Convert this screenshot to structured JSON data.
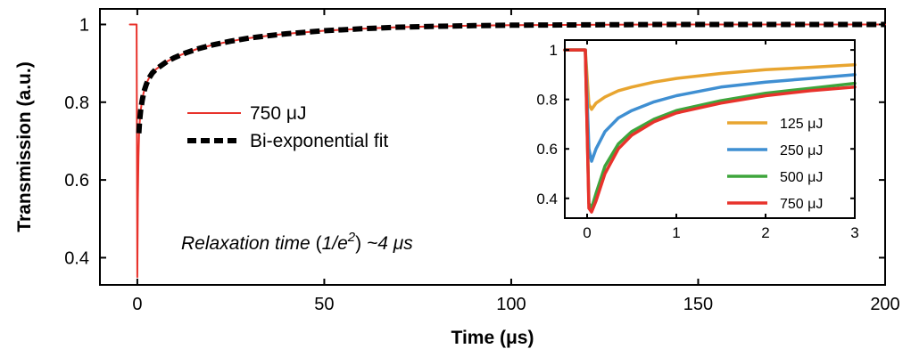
{
  "chart_data": [
    {
      "type": "line",
      "xlabel": "Time (μs)",
      "ylabel": "Transmission (a.u.)",
      "xlim": [
        -10,
        200
      ],
      "ylim": [
        0.33,
        1.04
      ],
      "xticks": [
        0,
        50,
        100,
        150,
        200
      ],
      "yticks": [
        0.4,
        0.6,
        0.8,
        1
      ],
      "legend": "middle-left",
      "grid": false,
      "annotation": {
        "prefix": "Relaxation time ",
        "open_paren": "(",
        "base": "1/e",
        "superscript": "2",
        "close_paren": ")",
        "suffix": " ~4 μs"
      },
      "series": [
        {
          "name": "750 μJ",
          "color": "#e8322b",
          "style": "solid",
          "x": [
            -2,
            -0.2,
            0,
            0.05,
            0.15,
            0.3,
            0.5,
            0.8,
            1.2,
            1.7,
            2.3,
            3,
            4,
            5,
            6.5,
            8,
            10,
            13,
            16,
            20,
            25,
            30,
            35,
            40,
            50,
            60,
            70,
            80,
            90,
            100,
            120,
            140,
            160,
            180,
            200
          ],
          "y": [
            1.0,
            1.0,
            0.35,
            0.42,
            0.55,
            0.66,
            0.73,
            0.77,
            0.8,
            0.825,
            0.845,
            0.86,
            0.875,
            0.885,
            0.895,
            0.905,
            0.915,
            0.927,
            0.937,
            0.947,
            0.957,
            0.965,
            0.971,
            0.976,
            0.984,
            0.989,
            0.993,
            0.995,
            0.997,
            0.998,
            0.999,
            1.0,
            1.0,
            1.0,
            1.0
          ]
        },
        {
          "name": "Bi-exponential fit",
          "color": "#000000",
          "style": "dashed",
          "x": [
            0.4,
            0.6,
            0.9,
            1.3,
            1.8,
            2.4,
            3,
            4,
            5,
            6.5,
            8,
            10,
            13,
            16,
            20,
            25,
            30,
            35,
            40,
            50,
            60,
            70,
            80,
            90,
            100,
            120,
            140,
            160,
            180,
            200
          ],
          "y": [
            0.72,
            0.75,
            0.78,
            0.805,
            0.828,
            0.846,
            0.86,
            0.875,
            0.885,
            0.895,
            0.905,
            0.915,
            0.927,
            0.937,
            0.947,
            0.957,
            0.965,
            0.971,
            0.976,
            0.984,
            0.989,
            0.993,
            0.995,
            0.997,
            0.998,
            0.999,
            1.0,
            1.0,
            1.0,
            1.0
          ]
        }
      ]
    },
    {
      "type": "line",
      "xlabel": "",
      "ylabel": "",
      "xlim": [
        -0.25,
        3
      ],
      "ylim": [
        0.32,
        1.04
      ],
      "xticks": [
        0,
        1,
        2,
        3
      ],
      "yticks": [
        0.4,
        0.6,
        0.8,
        1
      ],
      "legend": "bottom-right",
      "grid": false,
      "series": [
        {
          "name": "125 μJ",
          "color": "#e8a530",
          "x": [
            -0.25,
            -0.02,
            0.02,
            0.05,
            0.1,
            0.2,
            0.35,
            0.5,
            0.75,
            1.0,
            1.5,
            2.0,
            2.5,
            3.0
          ],
          "y": [
            1.0,
            1.0,
            0.78,
            0.76,
            0.785,
            0.81,
            0.835,
            0.85,
            0.87,
            0.885,
            0.905,
            0.92,
            0.93,
            0.94
          ]
        },
        {
          "name": "250 μJ",
          "color": "#3f8fd2",
          "x": [
            -0.25,
            -0.02,
            0.02,
            0.05,
            0.1,
            0.2,
            0.35,
            0.5,
            0.75,
            1.0,
            1.5,
            2.0,
            2.5,
            3.0
          ],
          "y": [
            1.0,
            1.0,
            0.6,
            0.55,
            0.6,
            0.67,
            0.725,
            0.755,
            0.79,
            0.815,
            0.85,
            0.87,
            0.885,
            0.9
          ]
        },
        {
          "name": "500 μJ",
          "color": "#3ea53c",
          "x": [
            -0.25,
            -0.02,
            0.02,
            0.05,
            0.1,
            0.2,
            0.35,
            0.5,
            0.75,
            1.0,
            1.5,
            2.0,
            2.5,
            3.0
          ],
          "y": [
            1.0,
            1.0,
            0.38,
            0.36,
            0.42,
            0.53,
            0.62,
            0.67,
            0.72,
            0.755,
            0.795,
            0.825,
            0.845,
            0.865
          ]
        },
        {
          "name": "750 μJ",
          "color": "#e8322b",
          "x": [
            -0.25,
            -0.02,
            0.02,
            0.05,
            0.1,
            0.2,
            0.35,
            0.5,
            0.75,
            1.0,
            1.5,
            2.0,
            2.5,
            3.0
          ],
          "y": [
            1.0,
            1.0,
            0.36,
            0.345,
            0.39,
            0.5,
            0.6,
            0.655,
            0.71,
            0.745,
            0.785,
            0.815,
            0.835,
            0.85
          ]
        }
      ]
    }
  ]
}
